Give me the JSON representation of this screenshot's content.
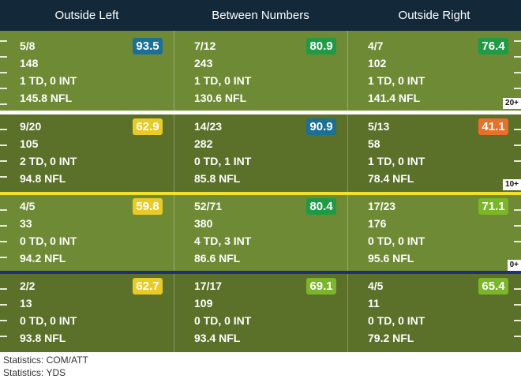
{
  "header": {
    "columns": [
      "Outside Left",
      "Between Numbers",
      "Outside Right"
    ]
  },
  "colors": {
    "header_bg": "#13293a",
    "field_light": "#6f8a35",
    "field_dark": "#5b7029",
    "grade_blue": "#1c6f95",
    "grade_green": "#1f9a45",
    "grade_lightgreen": "#7ab52a",
    "grade_yellow": "#e8cb27",
    "grade_orange": "#e8702b",
    "line_yellow": "#f2e12b",
    "line_blue": "#1f2f7d"
  },
  "rows": [
    {
      "cells": [
        {
          "comp": "5/8",
          "yds": "148",
          "tdint": "1 TD, 0 INT",
          "nfl": "145.8 NFL",
          "grade": "93.5",
          "grade_color": "#1c6f95"
        },
        {
          "comp": "7/12",
          "yds": "243",
          "tdint": "1 TD, 0 INT",
          "nfl": "130.6 NFL",
          "grade": "80.9",
          "grade_color": "#1f9a45"
        },
        {
          "comp": "4/7",
          "yds": "102",
          "tdint": "1 TD, 0 INT",
          "nfl": "141.4 NFL",
          "grade": "76.4",
          "grade_color": "#1f9a45"
        }
      ],
      "yard_label": "20+"
    },
    {
      "cells": [
        {
          "comp": "9/20",
          "yds": "105",
          "tdint": "2 TD, 0 INT",
          "nfl": "94.8 NFL",
          "grade": "62.9",
          "grade_color": "#e8cb27"
        },
        {
          "comp": "14/23",
          "yds": "282",
          "tdint": "0 TD, 1 INT",
          "nfl": "85.8 NFL",
          "grade": "90.9",
          "grade_color": "#1c6f95"
        },
        {
          "comp": "5/13",
          "yds": "58",
          "tdint": "1 TD, 0 INT",
          "nfl": "78.4 NFL",
          "grade": "41.1",
          "grade_color": "#e8702b"
        }
      ],
      "yard_label": "10+"
    },
    {
      "cells": [
        {
          "comp": "4/5",
          "yds": "33",
          "tdint": "0 TD, 0 INT",
          "nfl": "94.2 NFL",
          "grade": "59.8",
          "grade_color": "#e8cb27"
        },
        {
          "comp": "52/71",
          "yds": "380",
          "tdint": "4 TD, 3 INT",
          "nfl": "86.6 NFL",
          "grade": "80.4",
          "grade_color": "#1f9a45"
        },
        {
          "comp": "17/23",
          "yds": "176",
          "tdint": "0 TD, 0 INT",
          "nfl": "95.6 NFL",
          "grade": "71.1",
          "grade_color": "#7ab52a"
        }
      ],
      "yard_label": "0+"
    },
    {
      "cells": [
        {
          "comp": "2/2",
          "yds": "13",
          "tdint": "0 TD, 0 INT",
          "nfl": "93.8 NFL",
          "grade": "62.7",
          "grade_color": "#e8cb27"
        },
        {
          "comp": "17/17",
          "yds": "109",
          "tdint": "0 TD, 0 INT",
          "nfl": "93.4 NFL",
          "grade": "69.1",
          "grade_color": "#7ab52a"
        },
        {
          "comp": "4/5",
          "yds": "11",
          "tdint": "0 TD, 0 INT",
          "nfl": "79.2 NFL",
          "grade": "65.4",
          "grade_color": "#7ab52a"
        }
      ],
      "yard_label": ""
    }
  ],
  "legend": {
    "line1": "Statistics: COM/ATT",
    "line2": "Statistics: YDS"
  }
}
